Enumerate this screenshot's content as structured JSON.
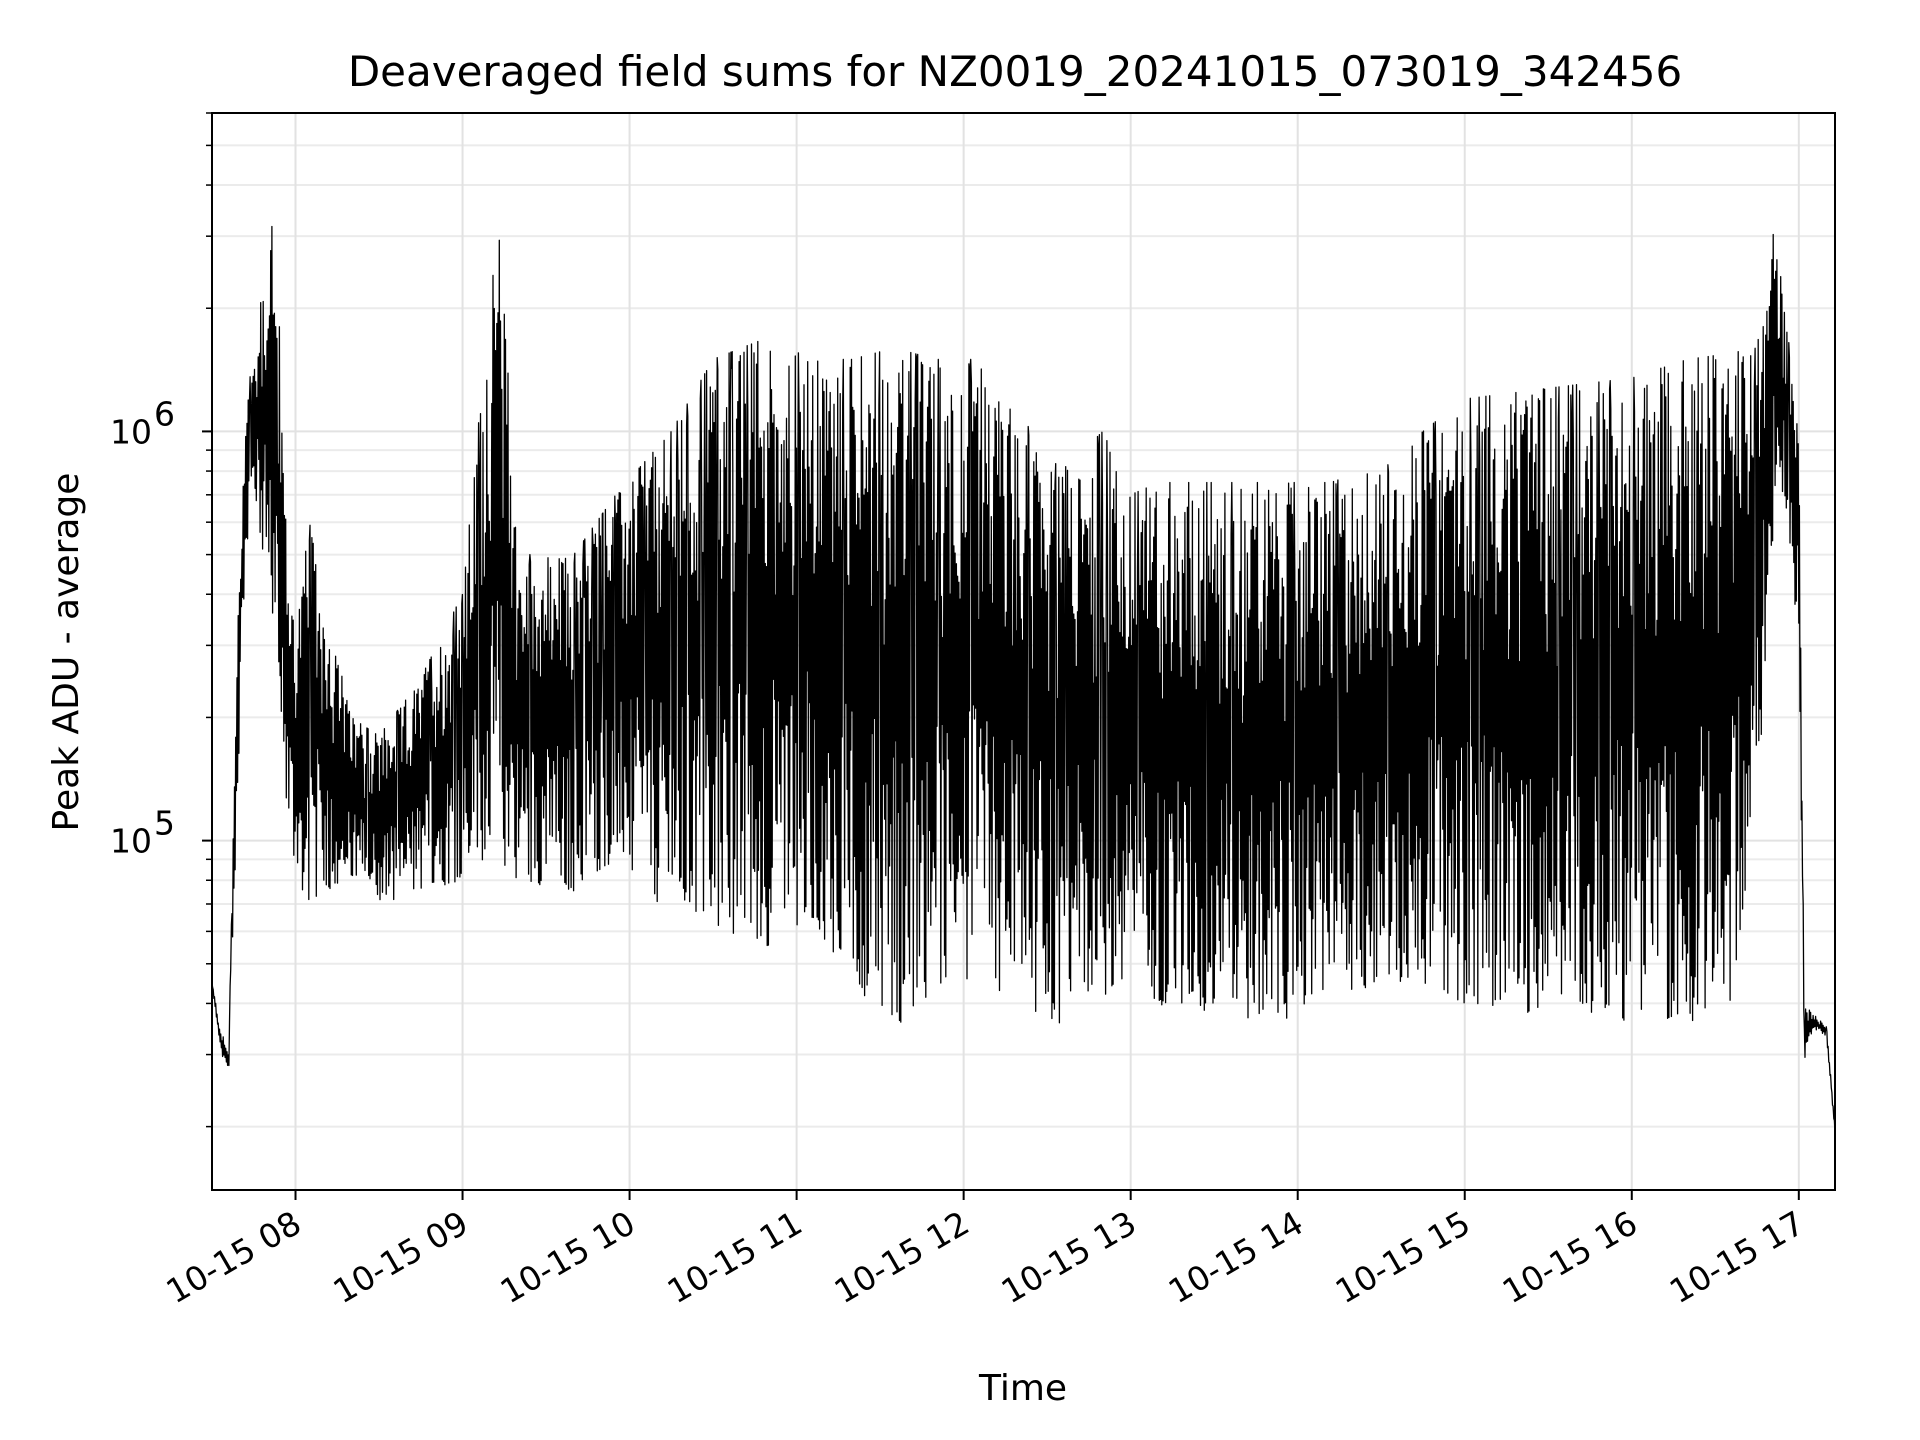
{
  "chart_data": {
    "type": "line",
    "title": "Deaveraged field sums for NZ0019_20241015_073019_342456",
    "xlabel": "Time",
    "ylabel": "Peak ADU - average",
    "y_scale": "log",
    "ylim": [
      14000,
      6000000
    ],
    "xlim": [
      "2024-10-15 07:30",
      "2024-10-15 17:13"
    ],
    "grid": true,
    "x_ticks": [
      "10-15 08",
      "10-15 09",
      "10-15 10",
      "10-15 11",
      "10-15 12",
      "10-15 13",
      "10-15 14",
      "10-15 15",
      "10-15 16",
      "10-15 17"
    ],
    "x_tick_times": [
      "2024-10-15 08:00",
      "2024-10-15 09:00",
      "2024-10-15 10:00",
      "2024-10-15 11:00",
      "2024-10-15 12:00",
      "2024-10-15 13:00",
      "2024-10-15 14:00",
      "2024-10-15 15:00",
      "2024-10-15 16:00",
      "2024-10-15 17:00"
    ],
    "y_ticks": [
      {
        "base": "10",
        "exp": "5",
        "value": 100000
      },
      {
        "base": "10",
        "exp": "6",
        "value": 1000000
      }
    ],
    "line_color": "#000000",
    "series": [
      {
        "x": [
          "2024-10-15 07:30",
          "2024-10-15 07:33",
          "2024-10-15 07:36",
          "2024-10-15 07:39",
          "2024-10-15 07:42",
          "2024-10-15 07:45",
          "2024-10-15 07:48",
          "2024-10-15 07:51",
          "2024-10-15 07:54",
          "2024-10-15 07:57",
          "2024-10-15 08:00",
          "2024-10-15 08:05",
          "2024-10-15 08:10",
          "2024-10-15 08:20",
          "2024-10-15 08:30",
          "2024-10-15 08:45",
          "2024-10-15 09:00",
          "2024-10-15 09:13",
          "2024-10-15 09:20",
          "2024-10-15 09:40",
          "2024-10-15 09:55",
          "2024-10-15 10:15",
          "2024-10-15 10:30",
          "2024-10-15 10:50",
          "2024-10-15 11:05",
          "2024-10-15 11:20",
          "2024-10-15 11:35",
          "2024-10-15 11:50",
          "2024-10-15 12:05",
          "2024-10-15 12:20",
          "2024-10-15 12:35",
          "2024-10-15 12:50",
          "2024-10-15 13:00",
          "2024-10-15 13:10",
          "2024-10-15 13:30",
          "2024-10-15 13:50",
          "2024-10-15 14:10",
          "2024-10-15 14:30",
          "2024-10-15 14:45",
          "2024-10-15 15:00",
          "2024-10-15 15:20",
          "2024-10-15 15:40",
          "2024-10-15 16:00",
          "2024-10-15 16:20",
          "2024-10-15 16:35",
          "2024-10-15 16:45",
          "2024-10-15 16:51",
          "2024-10-15 16:55",
          "2024-10-15 17:00",
          "2024-10-15 17:02",
          "2024-10-15 17:05",
          "2024-10-15 17:10",
          "2024-10-15 17:13"
        ],
        "lo": [
          45000,
          30000,
          27000,
          120000,
          500000,
          700000,
          500000,
          400000,
          200000,
          120000,
          80000,
          70000,
          75000,
          80000,
          70000,
          75000,
          80000,
          85000,
          80000,
          75000,
          90000,
          65000,
          60000,
          55000,
          65000,
          45000,
          35000,
          40000,
          45000,
          40000,
          35000,
          40000,
          45000,
          40000,
          35000,
          35000,
          40000,
          45000,
          45000,
          40000,
          38000,
          38000,
          36000,
          36000,
          38000,
          120000,
          600000,
          700000,
          300000,
          28000,
          35000,
          33000,
          19000
        ],
        "hi": [
          45000,
          35000,
          30000,
          300000,
          1200000,
          1500000,
          2200000,
          3500000,
          2000000,
          500000,
          350000,
          600000,
          400000,
          200000,
          180000,
          250000,
          400000,
          3500000,
          500000,
          500000,
          700000,
          1000000,
          1500000,
          1700000,
          1500000,
          1500000,
          1600000,
          1500000,
          1500000,
          1100000,
          800000,
          1000000,
          700000,
          750000,
          750000,
          750000,
          750000,
          800000,
          1000000,
          1200000,
          1250000,
          1300000,
          1350000,
          1500000,
          1550000,
          1600000,
          3200000,
          2000000,
          1000000,
          40000,
          38000,
          35000,
          20000
        ]
      }
    ]
  }
}
